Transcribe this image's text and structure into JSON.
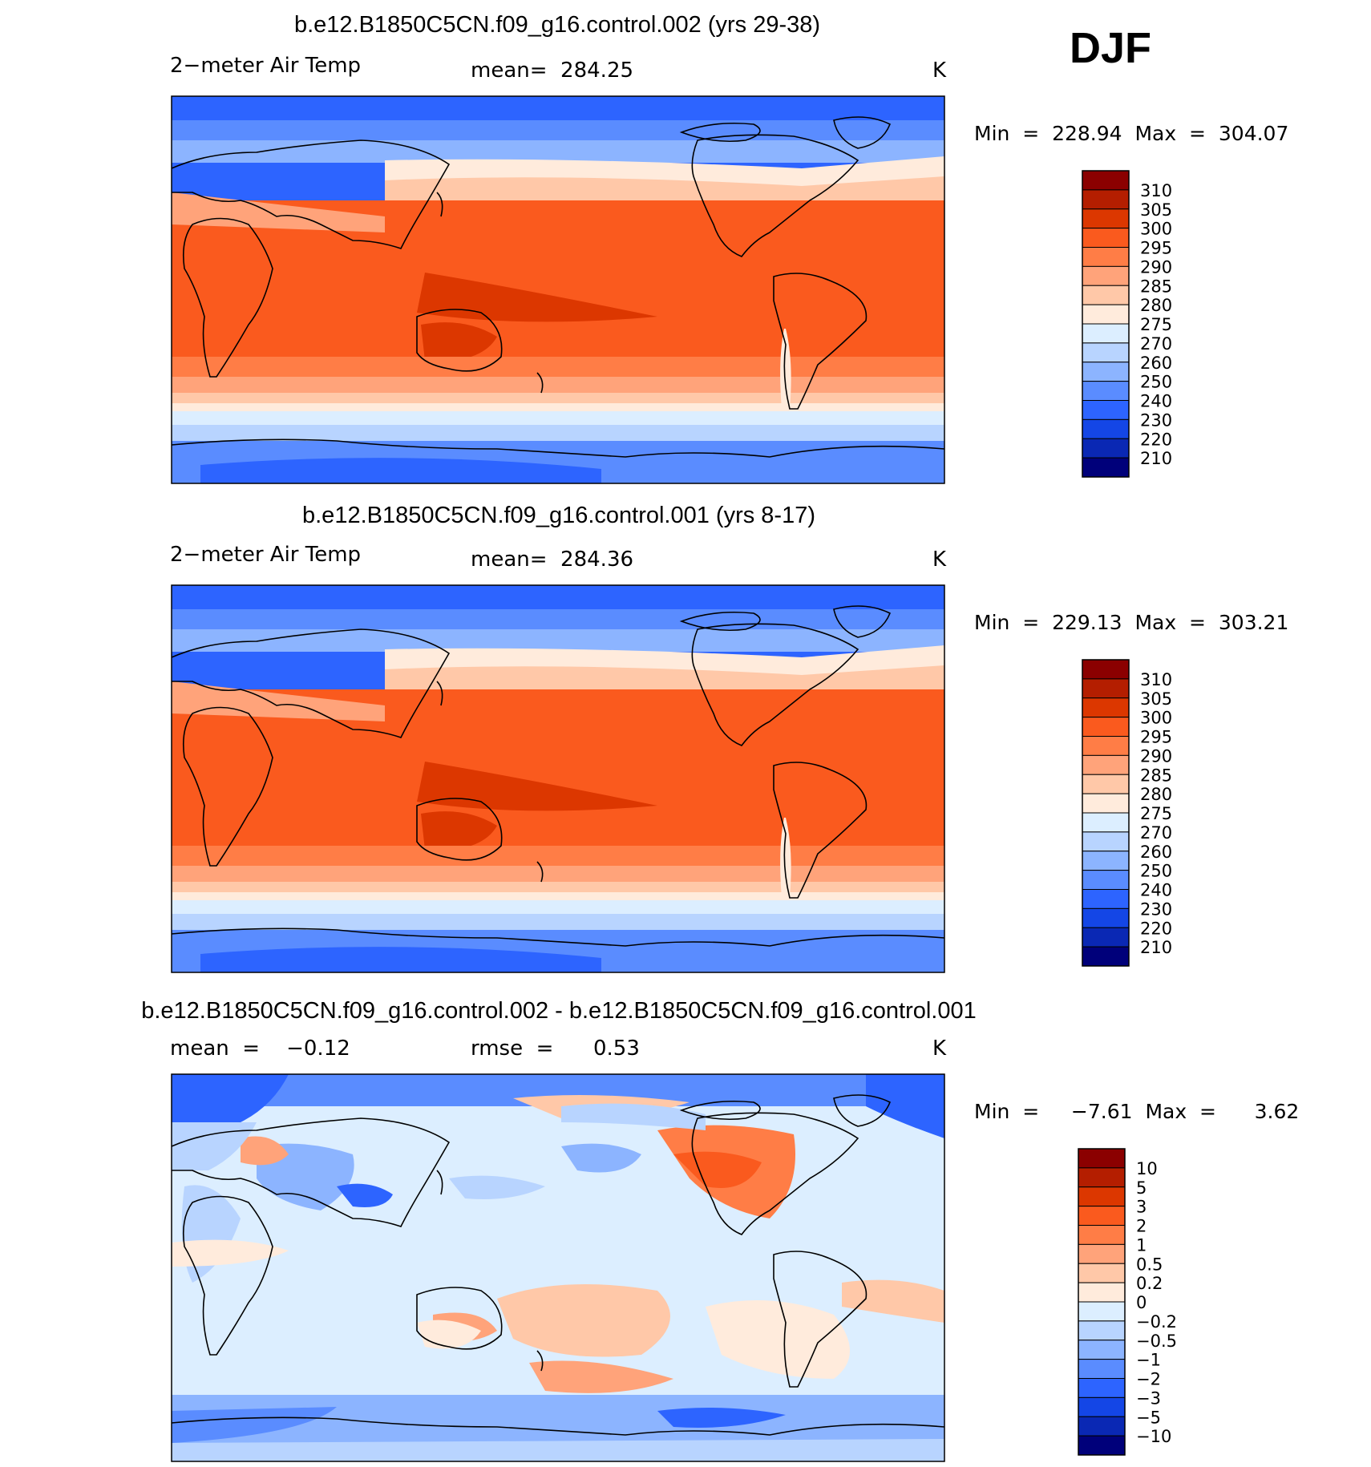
{
  "season": "DJF",
  "units": "K",
  "panels": [
    {
      "id": "top",
      "title": "b.e12.B1850C5CN.f09_g16.control.002 (yrs 29-38)",
      "variable": "2−meter Air Temp",
      "stat_text": "mean=  284.25",
      "units": "K",
      "range_text": "Min  =  228.94  Max  =  304.07",
      "palette": "temp",
      "colorbar_labels": [
        "310",
        "305",
        "300",
        "295",
        "290",
        "285",
        "280",
        "275",
        "270",
        "260",
        "250",
        "240",
        "230",
        "220",
        "210"
      ]
    },
    {
      "id": "middle",
      "title": "b.e12.B1850C5CN.f09_g16.control.001 (yrs 8-17)",
      "variable": "2−meter Air Temp",
      "stat_text": "mean=  284.36",
      "units": "K",
      "range_text": "Min  =  229.13  Max  =  303.21",
      "palette": "temp",
      "colorbar_labels": [
        "310",
        "305",
        "300",
        "295",
        "290",
        "285",
        "280",
        "275",
        "270",
        "260",
        "250",
        "240",
        "230",
        "220",
        "210"
      ]
    },
    {
      "id": "bottom",
      "title": "b.e12.B1850C5CN.f09_g16.control.002 - b.e12.B1850C5CN.f09_g16.control.001",
      "mean_text": "mean  =    −0.12",
      "rmse_text": "rmse  =      0.53",
      "units": "K",
      "range_text": "Min  =     −7.61  Max  =      3.62",
      "palette": "diff",
      "colorbar_labels": [
        "10",
        "5",
        "3",
        "2",
        "1",
        "0.5",
        "0.2",
        "0",
        "−0.2",
        "−0.5",
        "−1",
        "−2",
        "−3",
        "−5",
        "−10"
      ]
    }
  ],
  "colors": {
    "palette_16": [
      "#8b0000",
      "#b41e00",
      "#dc3700",
      "#fa5a1e",
      "#ff7d46",
      "#ffa37a",
      "#ffc8a8",
      "#ffebdc",
      "#dceeff",
      "#b8d4ff",
      "#8cb4ff",
      "#5a8cff",
      "#2d64ff",
      "#1446e6",
      "#0a28b4",
      "#00007a"
    ],
    "coast": "#000000"
  }
}
